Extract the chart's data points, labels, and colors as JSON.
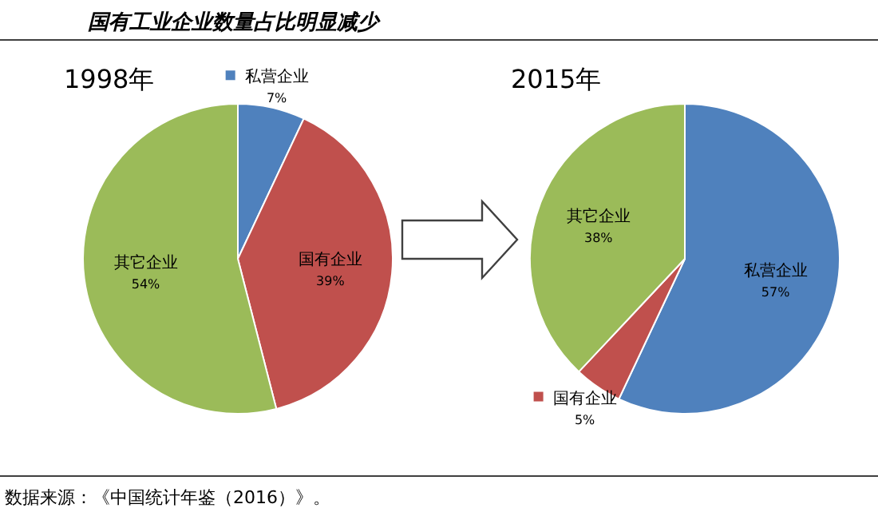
{
  "chart_data": [
    {
      "type": "pie",
      "title": "1998年",
      "categories": [
        "私营企业",
        "国有企业",
        "其它企业"
      ],
      "values": [
        7,
        39,
        54
      ],
      "colors": [
        "#4f81bd",
        "#c0504d",
        "#9bbb59"
      ],
      "value_labels": [
        "7%",
        "39%",
        "54%"
      ],
      "annotations": [
        "国有工业企业数量占比明显减少"
      ]
    },
    {
      "type": "pie",
      "title": "2015年",
      "categories": [
        "私营企业",
        "国有企业",
        "其它企业"
      ],
      "values": [
        57,
        5,
        38
      ],
      "colors": [
        "#4f81bd",
        "#c0504d",
        "#9bbb59"
      ],
      "value_labels": [
        "57%",
        "5%",
        "38%"
      ],
      "annotations": [
        "数据来源：《中国统计年鉴（2016）》。"
      ]
    }
  ]
}
